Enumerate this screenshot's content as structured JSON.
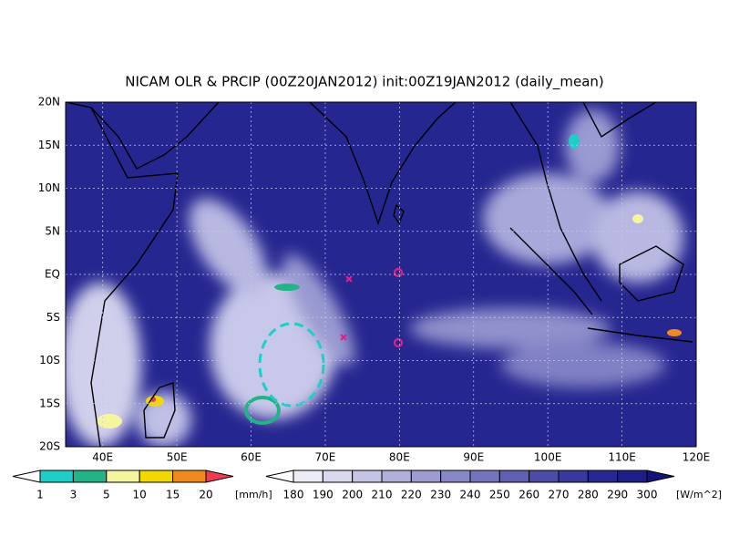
{
  "title": "NICAM OLR & PRCIP (00Z20JAN2012) init:00Z19JAN2012 (daily_mean)",
  "lat_labels": [
    "20N",
    "15N",
    "10N",
    "5N",
    "EQ",
    "5S",
    "10S",
    "15S",
    "20S"
  ],
  "lon_labels": [
    "40E",
    "50E",
    "60E",
    "70E",
    "80E",
    "90E",
    "100E",
    "110E",
    "120E"
  ],
  "precip_scale": {
    "labels": [
      "1",
      "3",
      "5",
      "10",
      "15",
      "20"
    ],
    "unit": "[mm/h]",
    "colors": [
      "#ffffff",
      "#1ecfc8",
      "#22b486",
      "#f5f5a0",
      "#f0d800",
      "#f08a20",
      "#f03c50"
    ]
  },
  "olr_scale": {
    "labels": [
      "180",
      "190",
      "200",
      "210",
      "220",
      "230",
      "240",
      "250",
      "260",
      "270",
      "280",
      "290",
      "300"
    ],
    "unit": "[W/m^2]",
    "colors": [
      "#ffffff",
      "#ececf6",
      "#d8d8ee",
      "#c4c4e4",
      "#b0b0da",
      "#9c9cd0",
      "#8888c6",
      "#7474bc",
      "#6060b2",
      "#4c4ca8",
      "#38389e",
      "#282894",
      "#1e1e88",
      "#141478"
    ]
  }
}
